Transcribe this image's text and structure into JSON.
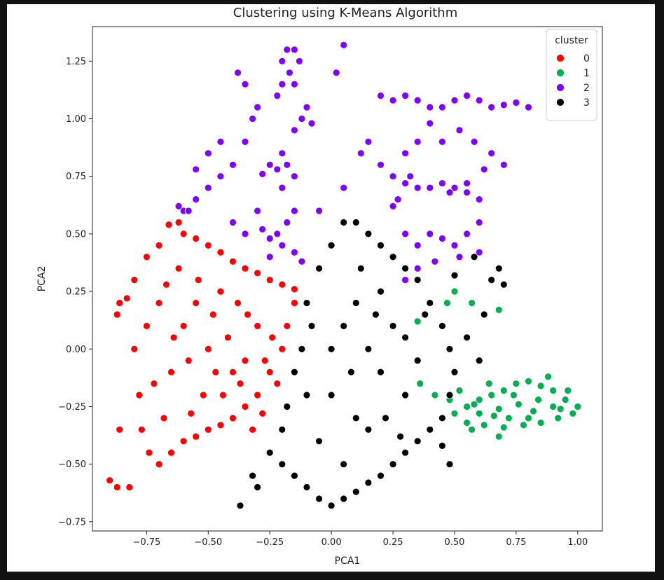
{
  "chart_data": {
    "type": "scatter",
    "title": "Clustering using K-Means Algorithm",
    "xlabel": "PCA1",
    "ylabel": "PCA2",
    "xlim": [
      -0.97,
      1.1
    ],
    "ylim": [
      -0.79,
      1.4
    ],
    "xticks": [
      -0.75,
      -0.5,
      -0.25,
      0.0,
      0.25,
      0.5,
      0.75,
      1.0
    ],
    "xtick_labels": [
      "−0.75",
      "−0.50",
      "−0.25",
      "0.00",
      "0.25",
      "0.50",
      "0.75",
      "1.00"
    ],
    "yticks": [
      -0.75,
      -0.5,
      -0.25,
      0.0,
      0.25,
      0.5,
      0.75,
      1.0,
      1.25
    ],
    "ytick_labels": [
      "−0.75",
      "−0.50",
      "−0.25",
      "0.00",
      "0.25",
      "0.50",
      "0.75",
      "1.00",
      "1.25"
    ],
    "grid": false,
    "legend": {
      "title": "cluster",
      "placement": "top-right"
    },
    "series": [
      {
        "name": "0",
        "color": "#ff0000",
        "points": [
          [
            -0.9,
            -0.57
          ],
          [
            -0.87,
            -0.6
          ],
          [
            -0.82,
            -0.6
          ],
          [
            -0.86,
            -0.35
          ],
          [
            -0.87,
            0.15
          ],
          [
            -0.86,
            0.2
          ],
          [
            -0.83,
            0.22
          ],
          [
            -0.8,
            0.3
          ],
          [
            -0.75,
            0.4
          ],
          [
            -0.7,
            0.45
          ],
          [
            -0.66,
            0.54
          ],
          [
            -0.62,
            0.55
          ],
          [
            -0.6,
            0.5
          ],
          [
            -0.55,
            0.48
          ],
          [
            -0.5,
            0.45
          ],
          [
            -0.45,
            0.42
          ],
          [
            -0.4,
            0.38
          ],
          [
            -0.35,
            0.35
          ],
          [
            -0.3,
            0.33
          ],
          [
            -0.25,
            0.3
          ],
          [
            -0.2,
            0.28
          ],
          [
            -0.15,
            0.26
          ],
          [
            -0.8,
            0.0
          ],
          [
            -0.78,
            -0.2
          ],
          [
            -0.74,
            -0.45
          ],
          [
            -0.7,
            -0.5
          ],
          [
            -0.65,
            -0.45
          ],
          [
            -0.6,
            -0.4
          ],
          [
            -0.55,
            -0.38
          ],
          [
            -0.5,
            -0.35
          ],
          [
            -0.45,
            -0.33
          ],
          [
            -0.4,
            -0.3
          ],
          [
            -0.35,
            -0.25
          ],
          [
            -0.3,
            -0.2
          ],
          [
            -0.25,
            -0.1
          ],
          [
            -0.2,
            0.0
          ],
          [
            -0.18,
            0.1
          ],
          [
            -0.15,
            0.2
          ],
          [
            -0.7,
            0.2
          ],
          [
            -0.6,
            0.1
          ],
          [
            -0.5,
            0.0
          ],
          [
            -0.4,
            -0.1
          ],
          [
            -0.3,
            0.1
          ],
          [
            -0.65,
            -0.1
          ],
          [
            -0.55,
            0.2
          ],
          [
            -0.45,
            0.25
          ],
          [
            -0.35,
            -0.05
          ],
          [
            -0.75,
            0.1
          ],
          [
            -0.62,
            0.35
          ],
          [
            -0.52,
            -0.2
          ],
          [
            -0.42,
            0.05
          ],
          [
            -0.32,
            -0.35
          ],
          [
            -0.22,
            -0.15
          ],
          [
            -0.68,
            -0.3
          ],
          [
            -0.58,
            -0.05
          ],
          [
            -0.48,
            0.15
          ],
          [
            -0.38,
            0.2
          ],
          [
            -0.28,
            -0.28
          ],
          [
            -0.72,
            -0.15
          ],
          [
            -0.64,
            0.05
          ],
          [
            -0.54,
            0.3
          ],
          [
            -0.44,
            -0.2
          ],
          [
            -0.34,
            0.15
          ],
          [
            -0.24,
            0.05
          ],
          [
            -0.77,
            -0.35
          ],
          [
            -0.67,
            0.28
          ],
          [
            -0.57,
            -0.28
          ],
          [
            -0.47,
            -0.1
          ],
          [
            -0.37,
            -0.15
          ],
          [
            -0.27,
            -0.05
          ]
        ]
      },
      {
        "name": "1",
        "color": "#00b050",
        "points": [
          [
            0.45,
            -0.3
          ],
          [
            0.5,
            -0.28
          ],
          [
            0.55,
            -0.25
          ],
          [
            0.6,
            -0.22
          ],
          [
            0.65,
            -0.2
          ],
          [
            0.7,
            -0.18
          ],
          [
            0.75,
            -0.15
          ],
          [
            0.8,
            -0.14
          ],
          [
            0.85,
            -0.16
          ],
          [
            0.9,
            -0.18
          ],
          [
            0.95,
            -0.22
          ],
          [
            1.0,
            -0.25
          ],
          [
            0.98,
            -0.28
          ],
          [
            0.92,
            -0.3
          ],
          [
            0.85,
            -0.32
          ],
          [
            0.78,
            -0.33
          ],
          [
            0.7,
            -0.34
          ],
          [
            0.62,
            -0.33
          ],
          [
            0.55,
            -0.32
          ],
          [
            0.48,
            -0.22
          ],
          [
            0.52,
            -0.18
          ],
          [
            0.6,
            -0.28
          ],
          [
            0.68,
            -0.26
          ],
          [
            0.76,
            -0.24
          ],
          [
            0.84,
            -0.22
          ],
          [
            0.9,
            -0.25
          ],
          [
            0.72,
            -0.3
          ],
          [
            0.64,
            -0.15
          ],
          [
            0.8,
            -0.3
          ],
          [
            0.88,
            -0.12
          ],
          [
            0.5,
            0.25
          ],
          [
            0.57,
            0.2
          ],
          [
            0.68,
            0.17
          ],
          [
            0.47,
            0.2
          ],
          [
            0.35,
            0.12
          ],
          [
            0.45,
            0.1
          ],
          [
            0.36,
            -0.15
          ],
          [
            0.42,
            -0.2
          ],
          [
            0.57,
            -0.35
          ],
          [
            0.68,
            -0.38
          ],
          [
            0.96,
            -0.18
          ],
          [
            0.93,
            -0.26
          ],
          [
            0.74,
            -0.2
          ],
          [
            0.66,
            -0.29
          ],
          [
            0.58,
            -0.24
          ],
          [
            0.82,
            -0.27
          ]
        ]
      },
      {
        "name": "2",
        "color": "#7f00ff",
        "points": [
          [
            -0.2,
            1.25
          ],
          [
            -0.18,
            1.3
          ],
          [
            -0.15,
            1.3
          ],
          [
            -0.13,
            1.25
          ],
          [
            -0.17,
            1.2
          ],
          [
            -0.2,
            1.15
          ],
          [
            -0.22,
            1.1
          ],
          [
            -0.15,
            1.15
          ],
          [
            -0.1,
            1.05
          ],
          [
            -0.12,
            1.0
          ],
          [
            -0.15,
            0.95
          ],
          [
            -0.2,
            0.85
          ],
          [
            -0.18,
            0.8
          ],
          [
            -0.15,
            0.75
          ],
          [
            -0.22,
            0.78
          ],
          [
            -0.25,
            0.8
          ],
          [
            -0.28,
            0.76
          ],
          [
            -0.2,
            0.7
          ],
          [
            -0.15,
            0.6
          ],
          [
            -0.18,
            0.55
          ],
          [
            -0.22,
            0.5
          ],
          [
            -0.25,
            0.48
          ],
          [
            -0.28,
            0.52
          ],
          [
            -0.2,
            0.45
          ],
          [
            -0.15,
            0.42
          ],
          [
            -0.12,
            0.38
          ],
          [
            -0.25,
            0.4
          ],
          [
            -0.6,
            0.6
          ],
          [
            -0.55,
            0.65
          ],
          [
            -0.5,
            0.7
          ],
          [
            -0.45,
            0.75
          ],
          [
            -0.4,
            0.8
          ],
          [
            -0.35,
            0.9
          ],
          [
            -0.32,
            1.0
          ],
          [
            -0.3,
            1.05
          ],
          [
            -0.35,
            1.15
          ],
          [
            -0.38,
            1.2
          ],
          [
            -0.45,
            0.9
          ],
          [
            -0.5,
            0.85
          ],
          [
            -0.55,
            0.78
          ],
          [
            -0.58,
            0.6
          ],
          [
            -0.62,
            0.62
          ],
          [
            -0.4,
            0.55
          ],
          [
            -0.35,
            0.5
          ],
          [
            -0.3,
            0.6
          ],
          [
            0.05,
            1.32
          ],
          [
            0.02,
            1.2
          ],
          [
            0.12,
            0.85
          ],
          [
            0.2,
            0.8
          ],
          [
            0.25,
            0.75
          ],
          [
            0.3,
            0.72
          ],
          [
            0.35,
            0.7
          ],
          [
            0.4,
            0.7
          ],
          [
            0.45,
            0.72
          ],
          [
            0.5,
            0.7
          ],
          [
            0.55,
            0.68
          ],
          [
            0.6,
            0.65
          ],
          [
            0.55,
            0.72
          ],
          [
            0.48,
            0.68
          ],
          [
            0.32,
            0.75
          ],
          [
            0.2,
            1.1
          ],
          [
            0.25,
            1.08
          ],
          [
            0.3,
            1.1
          ],
          [
            0.35,
            1.08
          ],
          [
            0.4,
            1.05
          ],
          [
            0.45,
            1.05
          ],
          [
            0.5,
            1.08
          ],
          [
            0.55,
            1.1
          ],
          [
            0.6,
            1.08
          ],
          [
            0.65,
            1.05
          ],
          [
            0.7,
            1.06
          ],
          [
            0.75,
            1.07
          ],
          [
            0.8,
            1.05
          ],
          [
            0.58,
            0.9
          ],
          [
            0.65,
            0.85
          ],
          [
            0.7,
            0.8
          ],
          [
            0.45,
            0.9
          ],
          [
            0.35,
            0.9
          ],
          [
            0.3,
            0.85
          ],
          [
            0.3,
            0.5
          ],
          [
            0.35,
            0.45
          ],
          [
            0.4,
            0.5
          ],
          [
            0.45,
            0.48
          ],
          [
            0.5,
            0.45
          ],
          [
            0.52,
            0.4
          ],
          [
            0.55,
            0.5
          ],
          [
            0.6,
            0.42
          ],
          [
            0.35,
            0.35
          ],
          [
            0.3,
            0.3
          ],
          [
            0.42,
            0.38
          ],
          [
            0.27,
            0.65
          ],
          [
            0.15,
            0.9
          ],
          [
            0.6,
            0.55
          ],
          [
            0.25,
            0.62
          ],
          [
            -0.08,
            0.98
          ],
          [
            -0.05,
            0.6
          ],
          [
            0.05,
            0.7
          ],
          [
            0.4,
            0.98
          ],
          [
            0.52,
            0.95
          ],
          [
            0.62,
            0.78
          ]
        ]
      },
      {
        "name": "3",
        "color": "#000000",
        "points": [
          [
            -0.37,
            -0.68
          ],
          [
            -0.32,
            -0.55
          ],
          [
            -0.3,
            -0.6
          ],
          [
            -0.25,
            -0.45
          ],
          [
            -0.2,
            -0.35
          ],
          [
            -0.18,
            -0.25
          ],
          [
            -0.15,
            -0.1
          ],
          [
            -0.12,
            0.0
          ],
          [
            -0.1,
            0.2
          ],
          [
            -0.05,
            0.35
          ],
          [
            0.0,
            0.45
          ],
          [
            0.05,
            0.55
          ],
          [
            0.1,
            0.55
          ],
          [
            0.15,
            0.5
          ],
          [
            0.2,
            0.45
          ],
          [
            0.25,
            0.4
          ],
          [
            0.3,
            0.35
          ],
          [
            0.35,
            0.3
          ],
          [
            0.4,
            0.2
          ],
          [
            0.45,
            0.1
          ],
          [
            0.48,
            0.0
          ],
          [
            0.5,
            -0.1
          ],
          [
            0.48,
            -0.2
          ],
          [
            0.45,
            -0.3
          ],
          [
            0.4,
            -0.35
          ],
          [
            0.35,
            -0.4
          ],
          [
            0.3,
            -0.45
          ],
          [
            0.25,
            -0.5
          ],
          [
            0.2,
            -0.55
          ],
          [
            0.15,
            -0.58
          ],
          [
            0.1,
            -0.62
          ],
          [
            0.05,
            -0.65
          ],
          [
            0.0,
            -0.68
          ],
          [
            -0.05,
            -0.65
          ],
          [
            -0.1,
            -0.6
          ],
          [
            -0.15,
            -0.55
          ],
          [
            -0.2,
            -0.5
          ],
          [
            0.0,
            0.0
          ],
          [
            0.05,
            0.1
          ],
          [
            0.1,
            0.2
          ],
          [
            0.15,
            0.0
          ],
          [
            0.2,
            -0.1
          ],
          [
            0.25,
            0.1
          ],
          [
            0.3,
            -0.2
          ],
          [
            0.1,
            -0.3
          ],
          [
            0.0,
            -0.2
          ],
          [
            -0.05,
            -0.4
          ],
          [
            0.2,
            0.25
          ],
          [
            0.3,
            0.05
          ],
          [
            0.05,
            -0.5
          ],
          [
            0.15,
            -0.35
          ],
          [
            0.35,
            -0.05
          ],
          [
            -0.08,
            0.1
          ],
          [
            0.12,
            0.35
          ],
          [
            0.22,
            -0.3
          ],
          [
            0.38,
            0.15
          ],
          [
            -0.1,
            -0.2
          ],
          [
            0.08,
            -0.1
          ],
          [
            0.28,
            -0.38
          ],
          [
            0.18,
            0.15
          ],
          [
            0.48,
            -0.5
          ],
          [
            0.55,
            0.05
          ],
          [
            0.6,
            -0.05
          ],
          [
            0.62,
            0.15
          ],
          [
            0.65,
            0.3
          ],
          [
            0.68,
            0.35
          ],
          [
            0.7,
            0.28
          ],
          [
            0.5,
            0.32
          ],
          [
            0.58,
            0.4
          ],
          [
            0.45,
            -0.42
          ]
        ]
      }
    ]
  }
}
